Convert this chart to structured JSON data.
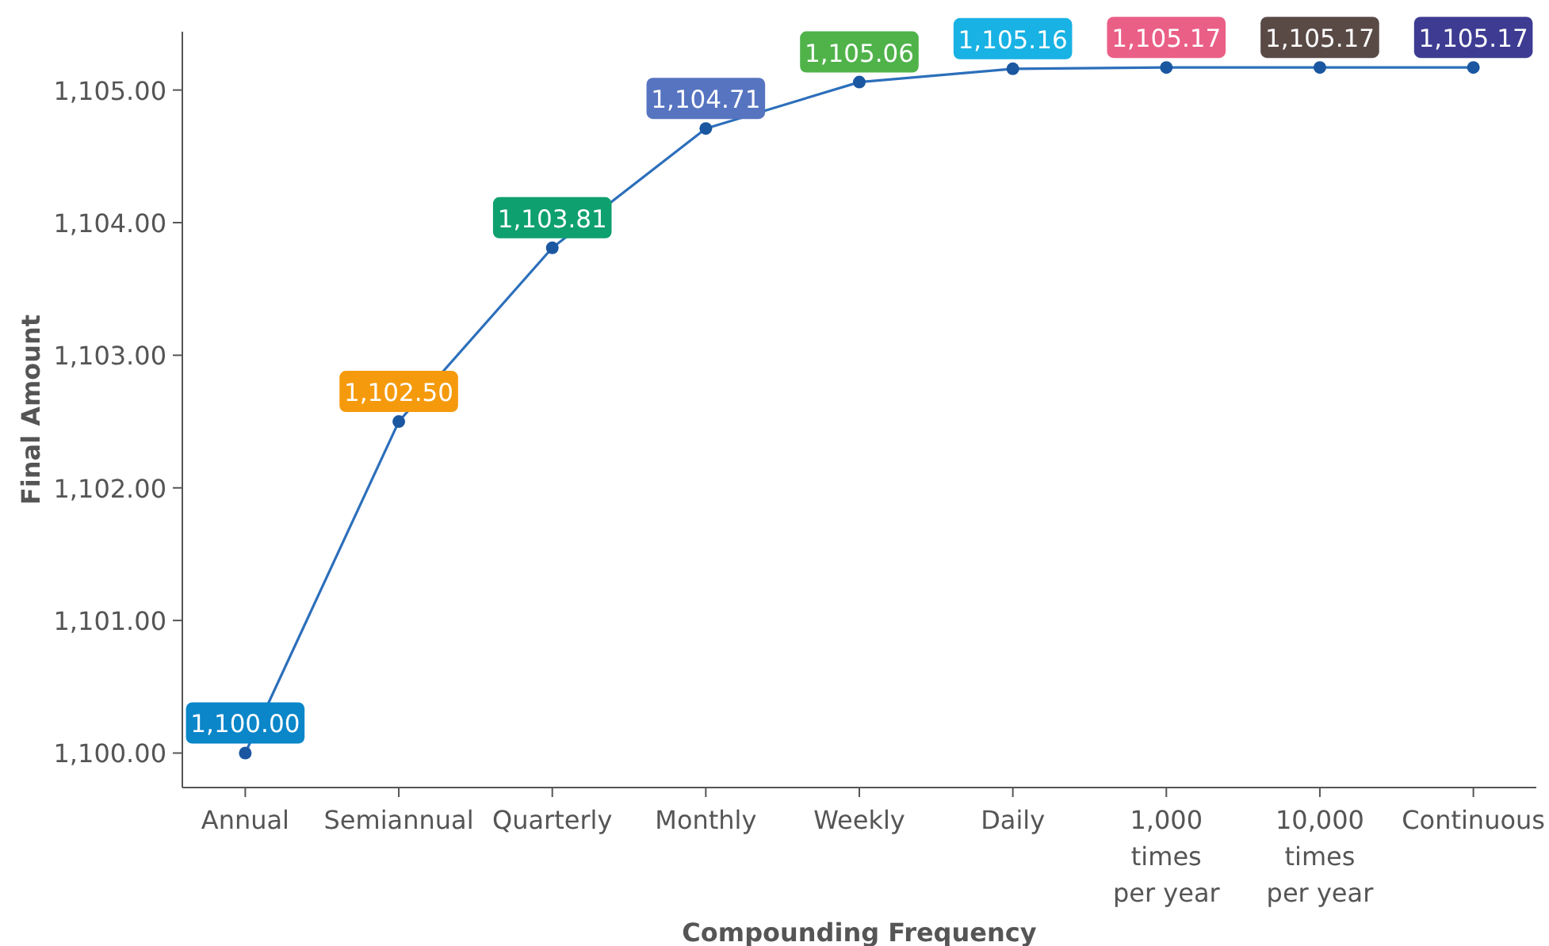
{
  "chart_data": {
    "type": "line",
    "xlabel": "Compounding Frequency",
    "ylabel": "Final Amount",
    "categories": [
      "Annual",
      "Semiannual",
      "Quarterly",
      "Monthly",
      "Weekly",
      "Daily",
      "1,000 times per year",
      "10,000 times per year",
      "Continuous"
    ],
    "series": [
      {
        "color": "#2c6fbb",
        "values": [
          1100.0,
          1102.5,
          1103.81,
          1104.71,
          1105.06,
          1105.16,
          1105.17,
          1105.17,
          1105.17
        ],
        "value_labels": [
          "1,100.00",
          "1,102.50",
          "1,103.81",
          "1,104.71",
          "1,105.06",
          "1,105.16",
          "1,105.17",
          "1,105.17",
          "1,105.17"
        ],
        "colors": [
          "#0a86c9",
          "#f59a0c",
          "#0ea06f",
          "#5674c0",
          "#4fb34a",
          "#18b2e4",
          "#ea5f86",
          "#5a4a46",
          "#3d3c92"
        ]
      }
    ],
    "ylim": [
      1099.74,
      1105.44
    ],
    "yticks": [
      {
        "value": 1100,
        "label": "1,100.00"
      },
      {
        "value": 1101,
        "label": "1,101.00"
      },
      {
        "value": 1102,
        "label": "1,102.00"
      },
      {
        "value": 1103,
        "label": "1,103.00"
      },
      {
        "value": 1104,
        "label": "1,104.00"
      },
      {
        "value": 1105,
        "label": "1,105.00"
      }
    ],
    "marker": "circle",
    "line_style": "solid"
  }
}
